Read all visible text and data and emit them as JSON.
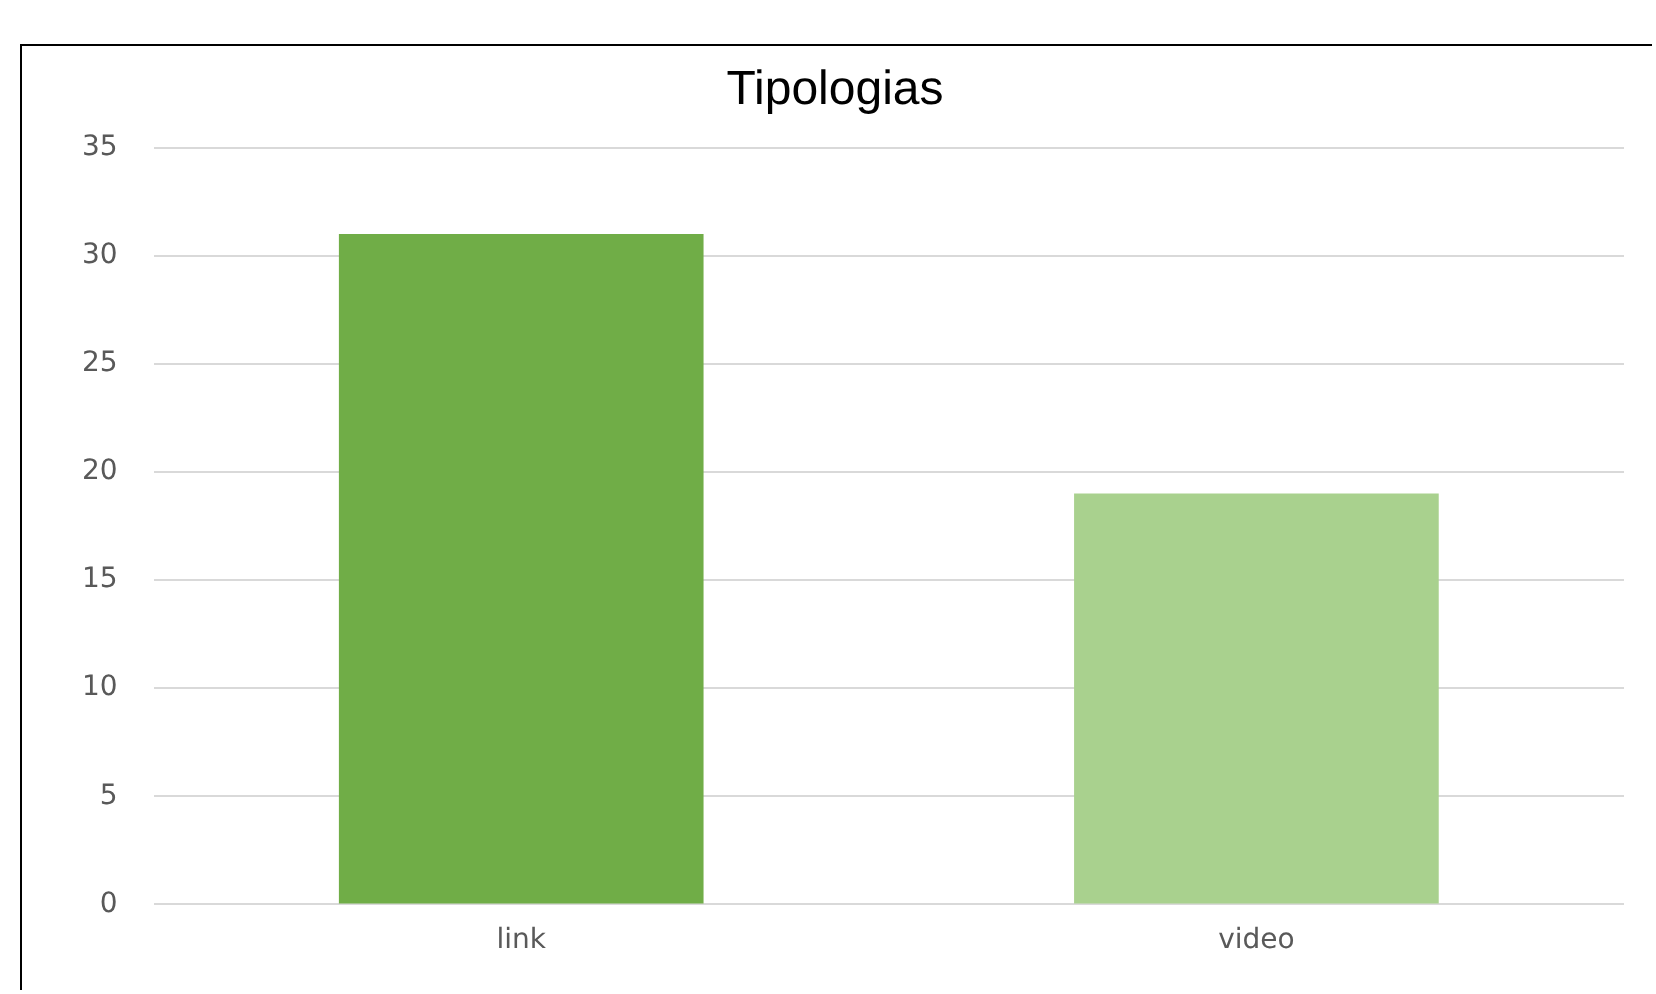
{
  "chart_data": {
    "type": "bar",
    "title": "Tipologias",
    "categories": [
      "link",
      "video"
    ],
    "values": [
      31,
      19
    ],
    "colors": [
      "#70ad47",
      "#a9d18e"
    ],
    "ylim": [
      0,
      35
    ],
    "yticks": [
      0,
      5,
      10,
      15,
      20,
      25,
      30,
      35
    ],
    "grid": "y",
    "legend": false
  }
}
